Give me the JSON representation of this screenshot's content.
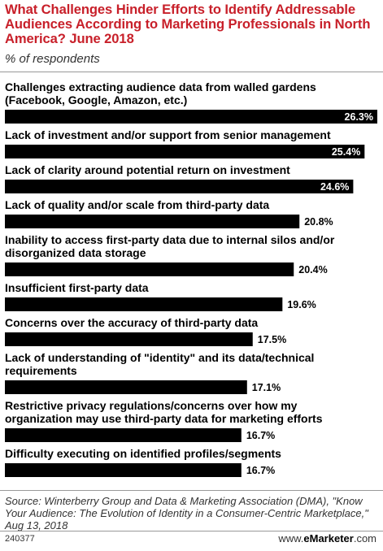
{
  "header": {
    "title": "What Challenges Hinder Efforts to Identify Addressable Audiences According to Marketing Professionals in North America? June 2018",
    "subtitle": "% of respondents"
  },
  "chart_data": {
    "type": "bar",
    "orientation": "horizontal",
    "categories": [
      "Challenges extracting audience data from walled gardens (Facebook, Google, Amazon, etc.)",
      "Lack of investment and/or support from senior management",
      "Lack of clarity around potential return on investment",
      "Lack of quality and/or scale from third-party data",
      "Inability to access first-party data due to internal silos and/or disorganized data storage",
      "Insufficient first-party data",
      "Concerns over the accuracy of third-party data",
      "Lack of understanding of \"identity\" and its data/technical requirements",
      "Restrictive privacy regulations/concerns over how my organization may use third-party data for marketing efforts",
      "Difficulty executing on identified profiles/segments"
    ],
    "category_lines": [
      [
        "Challenges extracting audience data from walled gardens",
        "(Facebook, Google, Amazon, etc.)"
      ],
      [
        "Lack of investment and/or support from senior management"
      ],
      [
        "Lack of clarity around potential return on investment"
      ],
      [
        "Lack of quality and/or scale from third-party data"
      ],
      [
        "Inability to access first-party data due to internal silos and/or",
        "disorganized data storage"
      ],
      [
        "Insufficient first-party data"
      ],
      [
        "Concerns over the accuracy of third-party data"
      ],
      [
        "Lack of understanding of \"identity\" and its data/technical",
        "requirements"
      ],
      [
        "Restrictive privacy regulations/concerns over how my",
        "organization may use third-party data for marketing efforts"
      ],
      [
        "Difficulty executing on identified profiles/segments"
      ]
    ],
    "values": [
      26.3,
      25.4,
      24.6,
      20.8,
      20.4,
      19.6,
      17.5,
      17.1,
      16.7,
      16.7
    ],
    "value_labels": [
      "26.3%",
      "25.4%",
      "24.6%",
      "20.8%",
      "20.4%",
      "19.6%",
      "17.5%",
      "17.1%",
      "16.7%",
      "16.7%"
    ],
    "unit": "%",
    "bar_color": "#000000",
    "value_label_inside_color": "#ffffff",
    "value_label_outside_color": "#000000"
  },
  "footer": {
    "source": "Source: Winterberry Group and Data & Marketing Association (DMA), \"Know Your Audience: The Evolution of Identity in a Consumer-Centric Marketplace,\" Aug 13, 2018",
    "chart_id": "240377",
    "brand_prefix": "www.",
    "brand_name": "eMarketer",
    "brand_suffix": ".com"
  }
}
